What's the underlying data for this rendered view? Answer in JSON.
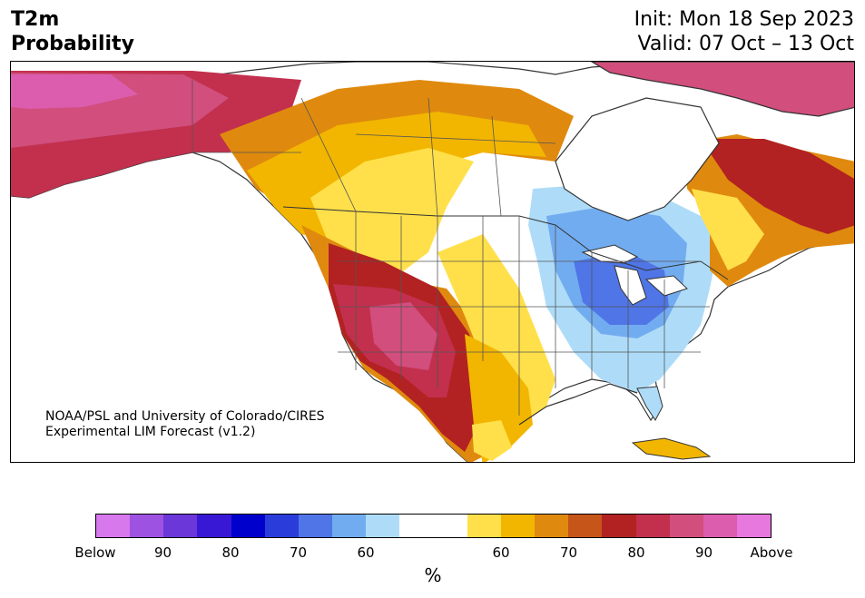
{
  "title": {
    "line1": "T2m",
    "line2": "Probability"
  },
  "dates": {
    "init": "Init: Mon 18 Sep 2023",
    "valid": "Valid: 07 Oct – 13 Oct"
  },
  "credit": {
    "line1": "NOAA/PSL and University of Colorado/CIRES",
    "line2": "Experimental LIM Forecast (v1.2)"
  },
  "colorbar": {
    "colors": [
      "#d778ec",
      "#9e52e1",
      "#6c37d9",
      "#3818d5",
      "#0000cd",
      "#2a3ddb",
      "#4f75e6",
      "#72acf0",
      "#aedcf8",
      "#ffffff",
      "#ffffff",
      "#ffe04a",
      "#f2b600",
      "#df8a0e",
      "#c65519",
      "#b22222",
      "#c2304e",
      "#d14e7d",
      "#dc5dae",
      "#e678de"
    ],
    "tick_labels": [
      "Below",
      "90",
      "80",
      "70",
      "60",
      "60",
      "70",
      "80",
      "90",
      "Above"
    ],
    "unit": "%"
  },
  "map": {
    "region": "North America",
    "colors": {
      "ocean": "#ffffff",
      "border": "#333333"
    }
  }
}
